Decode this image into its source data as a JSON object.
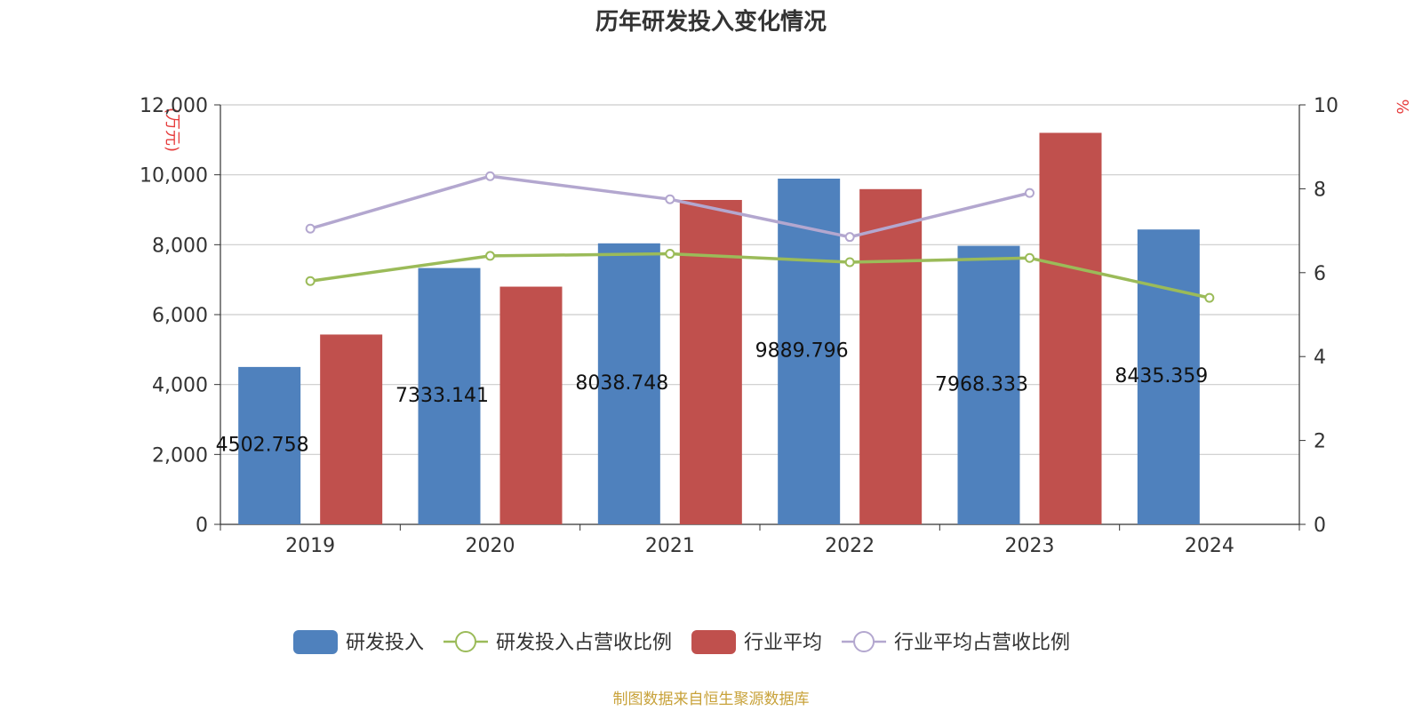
{
  "chart_data": {
    "type": "bar",
    "title": "历年研发投入变化情况",
    "categories": [
      "2019",
      "2020",
      "2021",
      "2022",
      "2023",
      "2024"
    ],
    "y_left": {
      "unit": "(万元)",
      "range": [
        0,
        12000
      ],
      "ticks": [
        "0",
        "2,000",
        "4,000",
        "6,000",
        "8,000",
        "10,000",
        "12,000"
      ]
    },
    "y_right": {
      "unit": "%",
      "range": [
        0,
        10
      ],
      "ticks": [
        "0",
        "2",
        "4",
        "6",
        "8",
        "10"
      ]
    },
    "grid": true,
    "legend_position": "bottom",
    "series": [
      {
        "name": "研发投入",
        "type": "bar",
        "axis": "left",
        "color": "#4f81bd",
        "values": [
          4502.758,
          7333.141,
          8038.748,
          9889.796,
          7968.333,
          8435.359
        ],
        "labels": [
          "4502.758",
          "7333.141",
          "8038.748",
          "9889.796",
          "7968.333",
          "8435.359"
        ]
      },
      {
        "name": "研发投入占营收比例",
        "type": "line",
        "axis": "right",
        "color": "#9bbb59",
        "values": [
          5.8,
          6.4,
          6.45,
          6.25,
          6.35,
          5.4
        ]
      },
      {
        "name": "行业平均",
        "type": "bar",
        "axis": "left",
        "color": "#c0504d",
        "values": [
          5430,
          6800,
          9280,
          9590,
          11200,
          null
        ]
      },
      {
        "name": "行业平均占营收比例",
        "type": "line",
        "axis": "right",
        "color": "#b3a7cf",
        "values": [
          7.05,
          8.3,
          7.75,
          6.85,
          7.9,
          null
        ]
      }
    ],
    "source": "制图数据来自恒生聚源数据库"
  }
}
